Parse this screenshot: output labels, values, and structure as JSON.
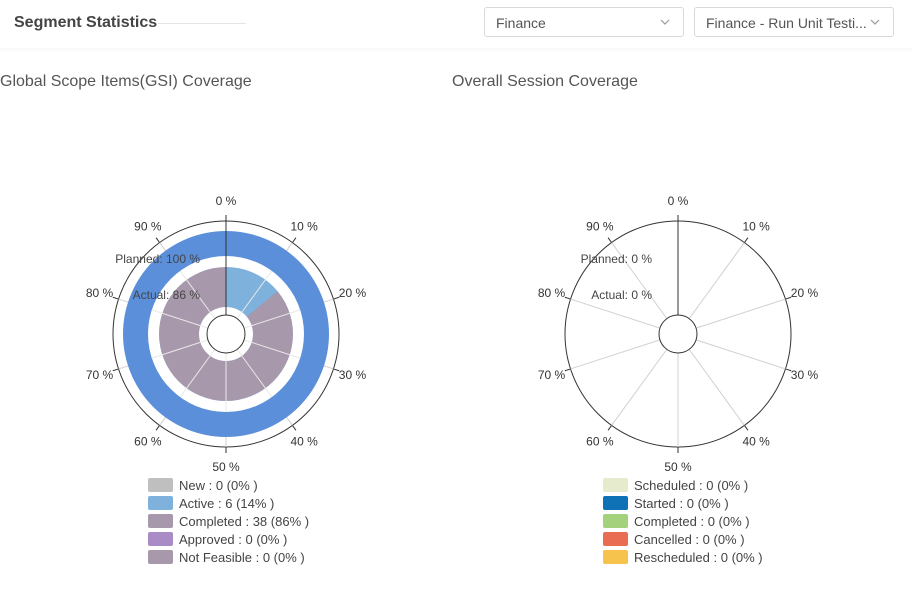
{
  "header": {
    "title": "Segment Statistics",
    "dropdown1": "Finance",
    "dropdown2": "Finance - Run Unit Testi..."
  },
  "chart_data": [
    {
      "type": "radial-bar",
      "title": "Global Scope Items(GSI) Coverage",
      "angle_axis": {
        "min": 0,
        "max": 100,
        "unit": "%",
        "ticks": [
          "0 %",
          "10 %",
          "20 %",
          "30 %",
          "40 %",
          "50 %",
          "60 %",
          "70 %",
          "80 %",
          "90 %"
        ]
      },
      "series": [
        {
          "name": "Planned",
          "label": "Planned: 100 %",
          "segments": [
            {
              "category": "Active",
              "value": 100
            }
          ]
        },
        {
          "name": "Actual",
          "label": "Actual: 86 %",
          "segments": [
            {
              "category": "Active",
              "value": 14
            },
            {
              "category": "Completed",
              "value": 86
            }
          ]
        }
      ],
      "legend": [
        {
          "label": "New : 0 (0% )",
          "color": "#bfbfbf"
        },
        {
          "label": "Active : 6 (14% )",
          "color": "#7eb2dd"
        },
        {
          "label": "Completed : 38 (86% )",
          "color": "#a898ab"
        },
        {
          "label": "Approved : 0 (0% )",
          "color": "#a98bc6"
        },
        {
          "label": "Not Feasible : 0 (0% )",
          "color": "#a898ab"
        }
      ],
      "colors": {
        "planned": "#5b8fd9",
        "active": "#7eb2dd",
        "completed": "#a898ab"
      }
    },
    {
      "type": "radial-bar",
      "title": "Overall Session Coverage",
      "angle_axis": {
        "min": 0,
        "max": 100,
        "unit": "%",
        "ticks": [
          "0 %",
          "10 %",
          "20 %",
          "30 %",
          "40 %",
          "50 %",
          "60 %",
          "70 %",
          "80 %",
          "90 %"
        ]
      },
      "series": [
        {
          "name": "Planned",
          "label": "Planned: 0 %",
          "segments": []
        },
        {
          "name": "Actual",
          "label": "Actual: 0 %",
          "segments": []
        }
      ],
      "legend": [
        {
          "label": "Scheduled : 0 (0% )",
          "color": "#e7ebcd"
        },
        {
          "label": "Started : 0 (0% )",
          "color": "#0f72b6"
        },
        {
          "label": "Completed : 0 (0% )",
          "color": "#a4d27c"
        },
        {
          "label": "Cancelled : 0 (0% )",
          "color": "#e96d53"
        },
        {
          "label": "Rescheduled : 0 (0% )",
          "color": "#f6c44c"
        }
      ]
    }
  ]
}
